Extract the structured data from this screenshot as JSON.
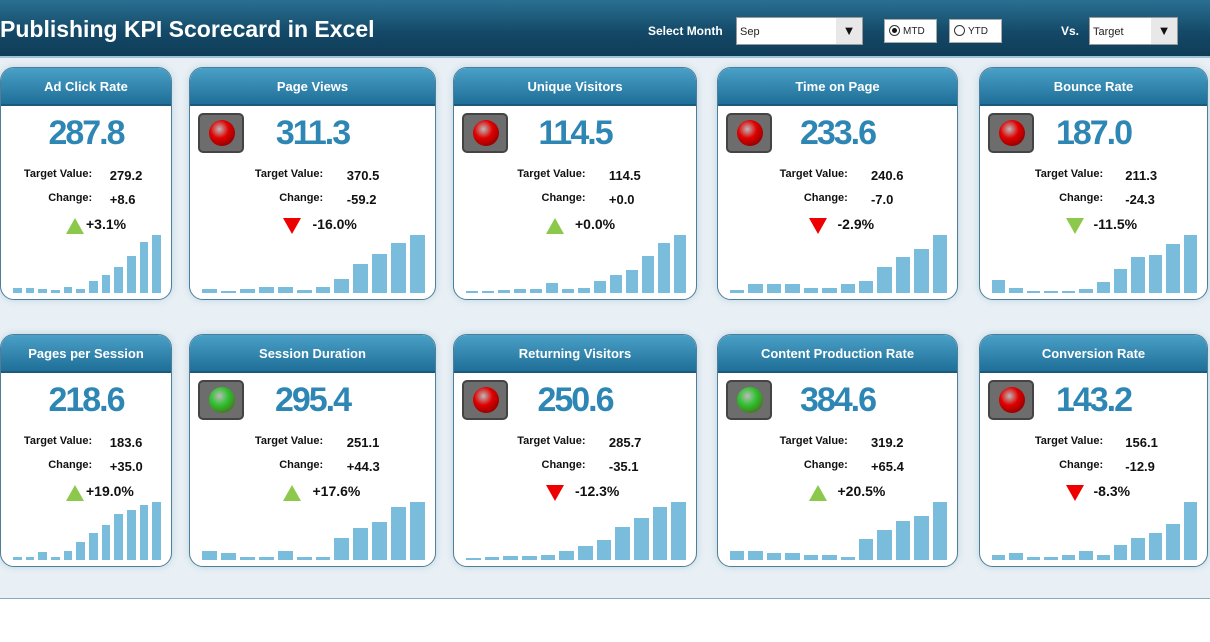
{
  "header": {
    "title": "Publishing KPI Scorecard in Excel",
    "select_month_label": "Select Month",
    "month": "Sep",
    "mtd": "MTD",
    "ytd": "YTD",
    "mtd_selected": true,
    "vs_label": "Vs.",
    "vs_value": "Target",
    "dropdown_icon": "▼"
  },
  "labels": {
    "target": "Target Value:",
    "change": "Change:"
  },
  "colors": {
    "header": "#134866",
    "card_header": "#2a82b0",
    "value": "#2e86b4",
    "bar": "#79bcdc",
    "up": "#8cc84b",
    "down": "#e00000",
    "light_red": "#e00000",
    "light_green": "#2fc12f"
  },
  "cards": [
    {
      "name": "Ad Click Rate",
      "value": "287.8",
      "target": "279.2",
      "change": "+8.6",
      "pct": "+3.1%",
      "arrow": "up",
      "light": "",
      "bars": [
        6,
        6,
        5,
        4,
        7,
        5,
        14,
        22,
        32,
        45,
        62,
        70
      ]
    },
    {
      "name": "Page Views",
      "value": "311.3",
      "target": "370.5",
      "change": "-59.2",
      "pct": "-16.0%",
      "arrow": "down",
      "light": "red",
      "bars": [
        5,
        2,
        5,
        7,
        7,
        4,
        8,
        18,
        36,
        48,
        62,
        72
      ]
    },
    {
      "name": "Unique Visitors",
      "value": "114.5",
      "target": "114.5",
      "change": "+0.0",
      "pct": "+0.0%",
      "arrow": "up",
      "light": "red",
      "bars": [
        2,
        2,
        4,
        5,
        5,
        12,
        5,
        6,
        14,
        22,
        28,
        45,
        60,
        70
      ]
    },
    {
      "name": "Time on Page",
      "value": "233.6",
      "target": "240.6",
      "change": "-7.0",
      "pct": "-2.9%",
      "arrow": "down",
      "light": "red",
      "bars": [
        3,
        10,
        10,
        10,
        6,
        6,
        10,
        14,
        30,
        42,
        52,
        68
      ]
    },
    {
      "name": "Bounce Rate",
      "value": "187.0",
      "target": "211.3",
      "change": "-24.3",
      "pct": "-11.5%",
      "arrow": "down-good",
      "light": "red",
      "bars": [
        14,
        6,
        2,
        2,
        2,
        4,
        12,
        26,
        40,
        42,
        54,
        64
      ]
    },
    {
      "name": "Pages per Session",
      "value": "218.6",
      "target": "183.6",
      "change": "+35.0",
      "pct": "+19.0%",
      "arrow": "up",
      "light": "",
      "bars": [
        4,
        4,
        10,
        4,
        12,
        24,
        36,
        46,
        60,
        66,
        72,
        76
      ]
    },
    {
      "name": "Session Duration",
      "value": "295.4",
      "target": "251.1",
      "change": "+44.3",
      "pct": "+17.6%",
      "arrow": "up",
      "light": "green",
      "bars": [
        10,
        8,
        4,
        4,
        10,
        4,
        4,
        26,
        38,
        44,
        62,
        68
      ]
    },
    {
      "name": "Returning Visitors",
      "value": "250.6",
      "target": "285.7",
      "change": "-35.1",
      "pct": "-12.3%",
      "arrow": "down",
      "light": "red",
      "bars": [
        2,
        3,
        4,
        4,
        6,
        10,
        16,
        22,
        36,
        46,
        58,
        64
      ]
    },
    {
      "name": "Content Production Rate",
      "value": "384.6",
      "target": "319.2",
      "change": "+65.4",
      "pct": "+20.5%",
      "arrow": "up",
      "light": "green",
      "bars": [
        10,
        10,
        8,
        8,
        6,
        6,
        4,
        24,
        34,
        44,
        50,
        66
      ]
    },
    {
      "name": "Conversion Rate",
      "value": "143.2",
      "target": "156.1",
      "change": "-12.9",
      "pct": "-8.3%",
      "arrow": "down",
      "light": "red",
      "bars": [
        6,
        8,
        4,
        4,
        6,
        10,
        6,
        18,
        26,
        32,
        42,
        68
      ]
    }
  ]
}
